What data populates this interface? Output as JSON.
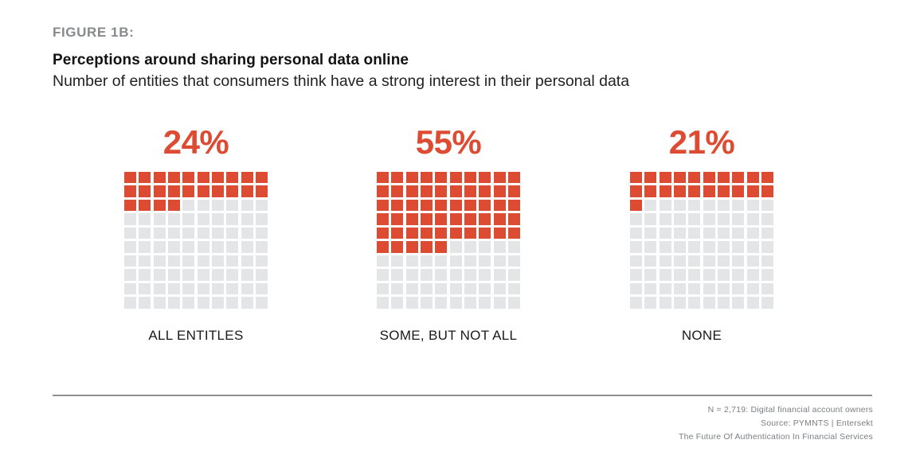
{
  "figure_label": "FIGURE 1B:",
  "title": "Perceptions around sharing personal data online",
  "subtitle": "Number of entities that consumers think have a strong interest in their personal data",
  "colors": {
    "accent": "#DD4B32",
    "empty": "#E4E5E6",
    "figure_label": "#87898C",
    "footer_text": "#7C7E80",
    "rule": "#8F9092"
  },
  "chart_data": {
    "type": "waffle",
    "title": "Perceptions around sharing personal data online",
    "subtitle": "Number of entities that consumers think have a strong interest in their personal data",
    "grid": {
      "rows": 10,
      "cols": 10,
      "unit_percent": 1
    },
    "fill_order": "left-to-right, top-to-bottom",
    "categories": [
      "ALL ENTITLES",
      "SOME, BUT NOT ALL",
      "NONE"
    ],
    "values": [
      24,
      55,
      21
    ],
    "value_labels": [
      "24%",
      "55%",
      "21%"
    ]
  },
  "footer": {
    "lines": [
      "N = 2,719: Digital financial account owners",
      "Source: PYMNTS  |  Entersekt",
      "The Future Of Authentication In Financial Services"
    ]
  }
}
